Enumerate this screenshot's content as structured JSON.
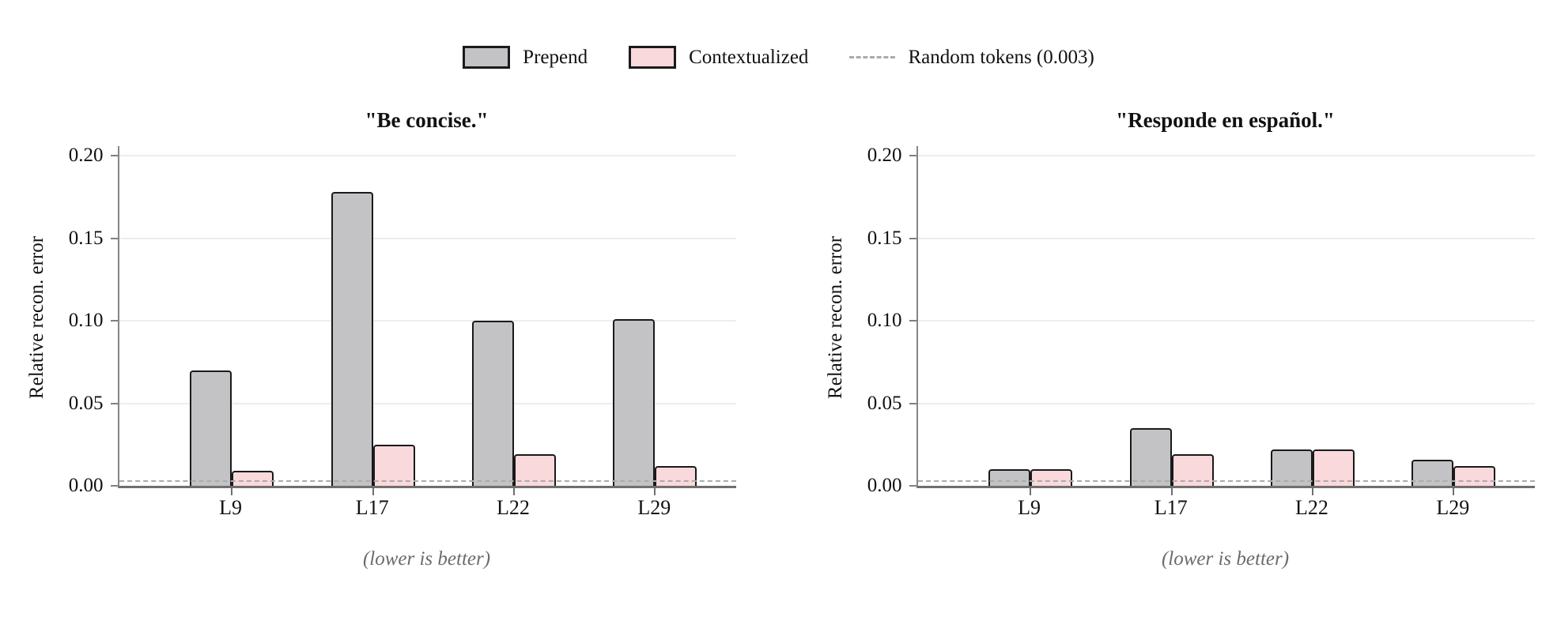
{
  "page": {
    "background": "#ffffff"
  },
  "legend": {
    "items": [
      {
        "label": "Prepend",
        "type": "swatch",
        "color": "#c3c3c6"
      },
      {
        "label": "Contextualized",
        "type": "swatch",
        "color": "#f9d9db"
      },
      {
        "label": "Random tokens (0.003)",
        "type": "dashed-line",
        "color": "#ababab"
      }
    ]
  },
  "chart_data": [
    {
      "type": "bar",
      "title": "\"Be concise.\"",
      "categories": [
        "L9",
        "L17",
        "L22",
        "L29"
      ],
      "series": [
        {
          "name": "Prepend",
          "color": "#c3c3c6",
          "values": [
            0.07,
            0.178,
            0.1,
            0.101
          ]
        },
        {
          "name": "Contextualized",
          "color": "#f9d9db",
          "values": [
            0.009,
            0.025,
            0.019,
            0.012
          ]
        }
      ],
      "ylabel": "Relative recon. error",
      "ylim": [
        0,
        0.2
      ],
      "yticks": [
        "0.00",
        "0.05",
        "0.10",
        "0.15",
        "0.20"
      ],
      "grid": "horizontal",
      "legend_position": "top-center-shared",
      "reference_line": {
        "value": 0.003,
        "label": "Random tokens (0.003)",
        "style": "dashed"
      },
      "caption": "(lower is better)"
    },
    {
      "type": "bar",
      "title": "\"Responde en español.\"",
      "categories": [
        "L9",
        "L17",
        "L22",
        "L29"
      ],
      "series": [
        {
          "name": "Prepend",
          "color": "#c3c3c6",
          "values": [
            0.01,
            0.035,
            0.022,
            0.016
          ]
        },
        {
          "name": "Contextualized",
          "color": "#f9d9db",
          "values": [
            0.01,
            0.019,
            0.022,
            0.012
          ]
        }
      ],
      "ylabel": "Relative recon. error",
      "ylim": [
        0,
        0.2
      ],
      "yticks": [
        "0.00",
        "0.05",
        "0.10",
        "0.15",
        "0.20"
      ],
      "grid": "horizontal",
      "legend_position": "top-center-shared",
      "reference_line": {
        "value": 0.003,
        "label": "Random tokens (0.003)",
        "style": "dashed"
      },
      "caption": "(lower is better)"
    }
  ]
}
